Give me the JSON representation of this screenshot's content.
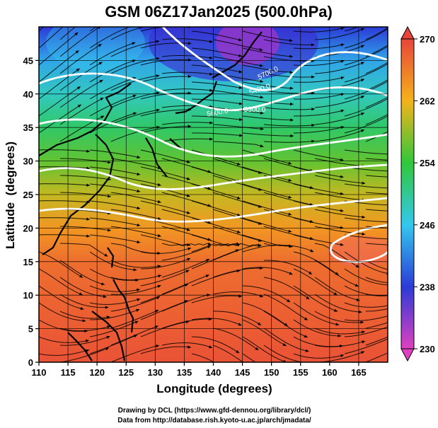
{
  "chart_data": {
    "type": "heatmap",
    "title": "GSM 06Z17Jan2025 (500.0hPa)",
    "xlabel": "Longitude (degrees)",
    "ylabel": "Latitude  (degrees)",
    "xlim": [
      110,
      170
    ],
    "ylim": [
      0,
      50
    ],
    "xticks": [
      "110",
      "115",
      "120",
      "125",
      "130",
      "135",
      "140",
      "145",
      "150",
      "155",
      "160",
      "165"
    ],
    "yticks": [
      "0",
      "5",
      "10",
      "15",
      "20",
      "25",
      "30",
      "35",
      "40",
      "45"
    ],
    "colorbar": {
      "min": 230,
      "max": 270,
      "tick_values": [
        230,
        238,
        246,
        254,
        262,
        270
      ],
      "tick_labels": [
        "230",
        "238",
        "246",
        "254",
        "262",
        "270"
      ],
      "colors": [
        "#e040c0",
        "#2b3bd8",
        "#33c8ee",
        "#2fc83a",
        "#f5b21a",
        "#e8453a"
      ]
    },
    "contour_labels": [
      "5700.0",
      "5400.0",
      "5300.0",
      "5600.0"
    ],
    "field_profile": [
      {
        "lat": 50,
        "value": 238
      },
      {
        "lat": 45,
        "value": 244
      },
      {
        "lat": 40,
        "value": 248
      },
      {
        "lat": 35,
        "value": 252
      },
      {
        "lat": 30,
        "value": 256
      },
      {
        "lat": 25,
        "value": 260
      },
      {
        "lat": 20,
        "value": 264
      },
      {
        "lat": 15,
        "value": 267
      },
      {
        "lat": 0,
        "value": 269
      }
    ]
  },
  "credits": {
    "line1": "Drawing by DCL (https://www.gfd-dennou.org/library/dcl/)",
    "line2": "Data from http://database.rish.kyoto-u.ac.jp/arch/jmadata/"
  }
}
